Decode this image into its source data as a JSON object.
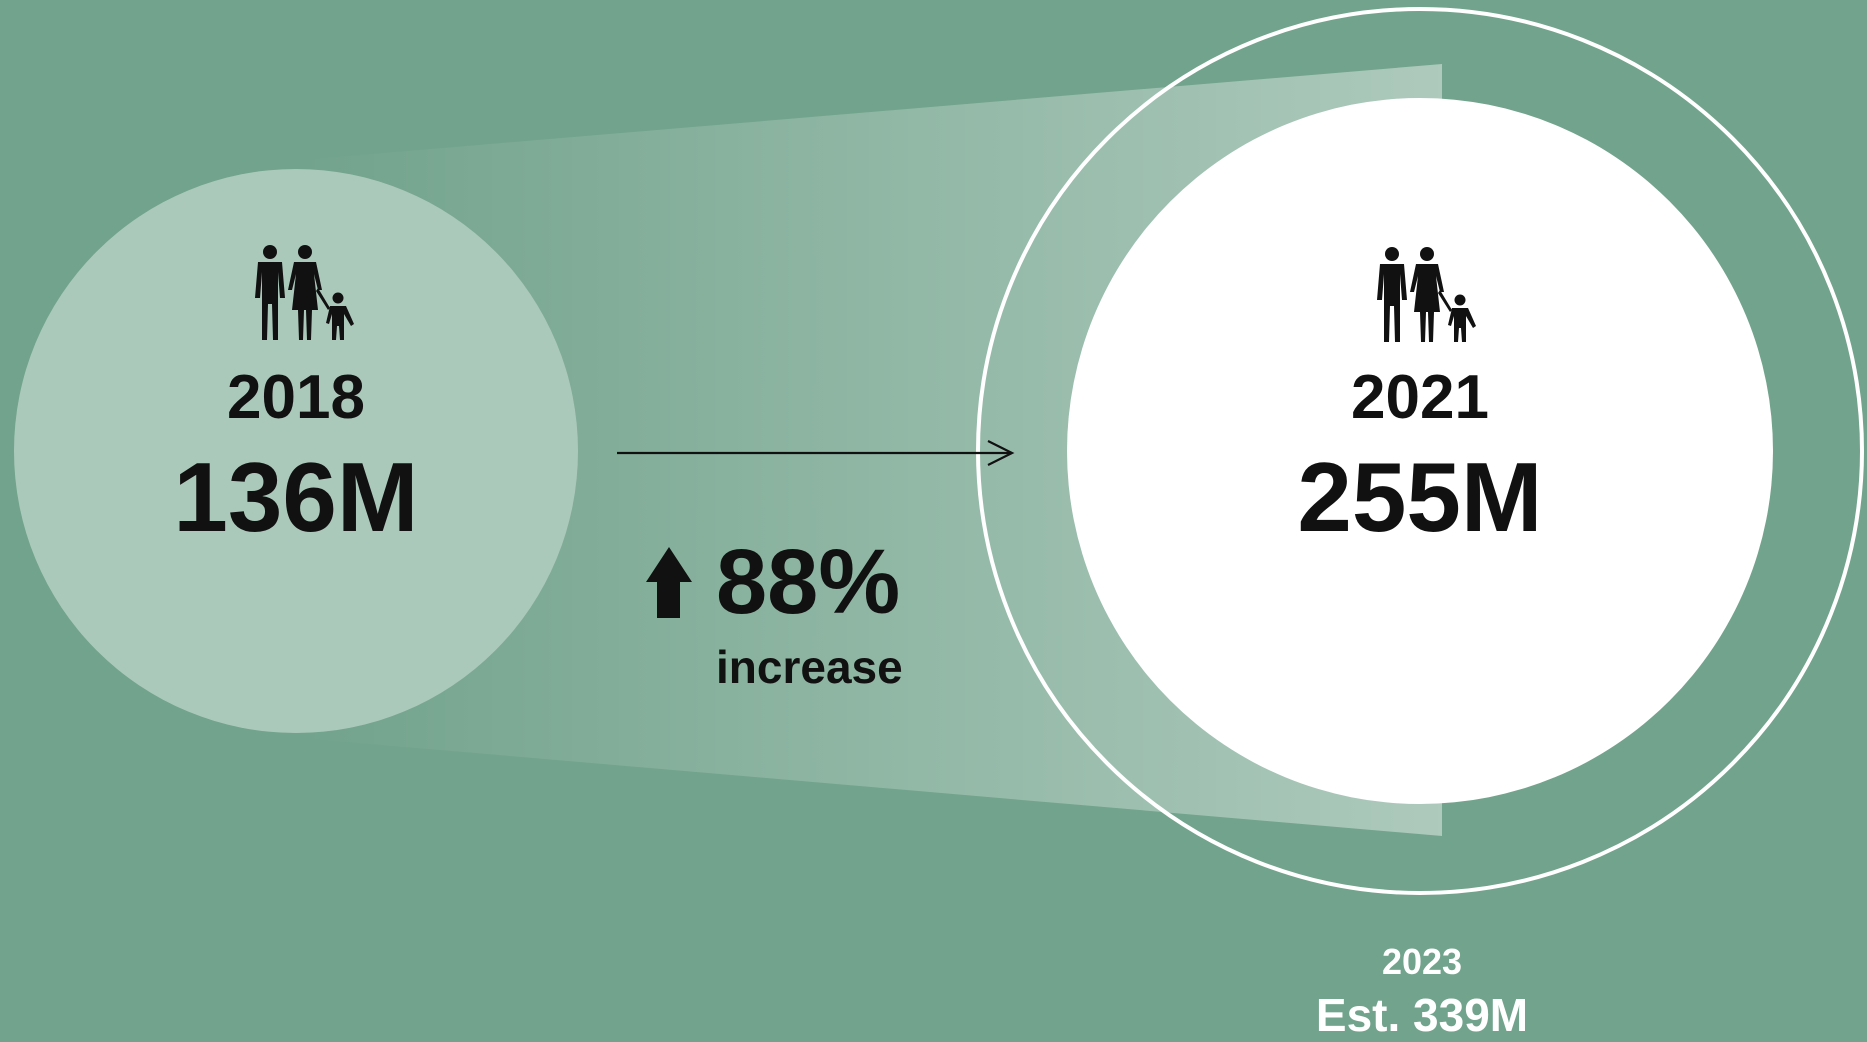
{
  "colors": {
    "background": "#72a38c",
    "circle_2018": "#abc9bb",
    "circle_2021": "#ffffff",
    "text": "#111111",
    "ring": "#ffffff"
  },
  "icons": {
    "family": "family-icon",
    "increase_arrow": "up-arrow-icon",
    "connector_arrow": "right-arrow-icon"
  },
  "left": {
    "year": "2018",
    "value": "136M"
  },
  "right": {
    "year": "2021",
    "value": "255M"
  },
  "change": {
    "percent": "88%",
    "label": "increase"
  },
  "estimate": {
    "year": "2023",
    "value": "Est. 339M"
  }
}
